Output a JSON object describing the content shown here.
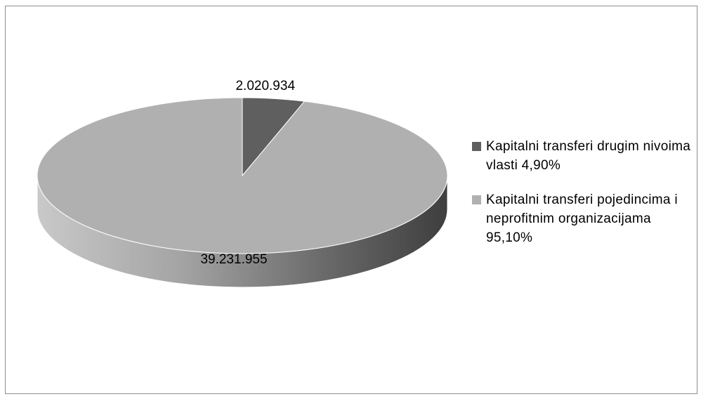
{
  "chart_data": {
    "type": "pie",
    "style": "3d",
    "title": "",
    "slices": [
      {
        "name": "Kapitalni transferi drugim nivoima vlasti 4,90%",
        "value": 2020934,
        "percent": 4.9,
        "label": "2.020.934",
        "color": "#5f5f5f"
      },
      {
        "name": "Kapitalni transferi pojedincima i neprofitnim organizacijama 95,10%",
        "value": 39231955,
        "percent": 95.1,
        "label": "39.231.955",
        "color": "#b0b0b0"
      }
    ],
    "legend_position": "right"
  }
}
